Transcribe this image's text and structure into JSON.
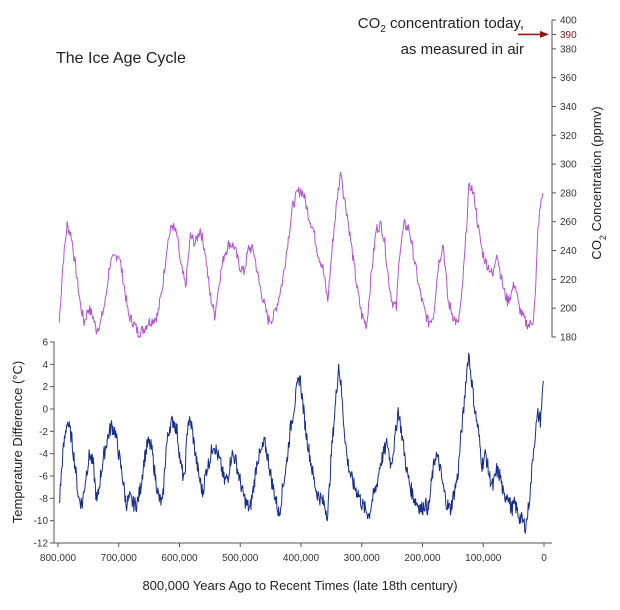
{
  "chart_data": [
    {
      "type": "line",
      "title": "The Ice Age Cycle",
      "xlabel": "800,000 Years Ago to Recent Times (late 18th century)",
      "ylabel": "CO2 Concentration (ppmv)",
      "ylabel_parts": [
        "CO",
        "2",
        " Concentration (ppmv)"
      ],
      "xlim": [
        800000,
        0
      ],
      "ylim": [
        180,
        400
      ],
      "x_ticks": [
        800000,
        700000,
        600000,
        500000,
        400000,
        300000,
        200000,
        100000,
        0
      ],
      "x_tick_labels": [
        "800,000",
        "700,000",
        "600,000",
        "500,000",
        "400,000",
        "300,000",
        "200,000",
        "100,000",
        "0"
      ],
      "y_ticks": [
        180,
        200,
        220,
        240,
        260,
        280,
        300,
        320,
        340,
        360,
        380,
        390,
        400
      ],
      "y_tick_labels": [
        "180",
        "200",
        "220",
        "240",
        "260",
        "280",
        "300",
        "320",
        "340",
        "360",
        "380",
        "390",
        "400"
      ],
      "highlight_tick": "390",
      "highlight_color": "#8b1a1a",
      "annotation": {
        "line1_parts": [
          "CO",
          "2",
          " concentration today,"
        ],
        "line2": "as measured in air",
        "value": 390,
        "arrow_color": "#8b1a1a"
      },
      "series": [
        {
          "color": "#b055d0",
          "x": [
            798000,
            792000,
            785000,
            778000,
            770000,
            763000,
            757000,
            750000,
            743000,
            737000,
            730000,
            722000,
            715000,
            707000,
            700000,
            692000,
            684000,
            676000,
            668000,
            660000,
            652000,
            644000,
            636000,
            628000,
            620000,
            612000,
            604000,
            598000,
            590000,
            582000,
            574000,
            566000,
            558000,
            550000,
            542000,
            534000,
            526000,
            518000,
            510000,
            502000,
            494000,
            486000,
            478000,
            470000,
            462000,
            454000,
            446000,
            438000,
            430000,
            422000,
            414000,
            406000,
            400000,
            395000,
            388000,
            380000,
            372000,
            364000,
            356000,
            348000,
            340000,
            334000,
            330000,
            324000,
            316000,
            308000,
            300000,
            292000,
            284000,
            276000,
            268000,
            262000,
            256000,
            250000,
            243000,
            238000,
            230000,
            222000,
            214000,
            206000,
            198000,
            190000,
            182000,
            174000,
            166000,
            158000,
            150000,
            142000,
            136000,
            130000,
            124000,
            120000,
            114000,
            108000,
            102000,
            96000,
            90000,
            84000,
            78000,
            72000,
            66000,
            60000,
            54000,
            48000,
            42000,
            36000,
            30000,
            24000,
            18000,
            14000,
            10000,
            6000,
            2000
          ],
          "values": [
            190,
            230,
            258,
            250,
            225,
            202,
            190,
            200,
            195,
            185,
            190,
            205,
            230,
            235,
            238,
            218,
            195,
            190,
            183,
            185,
            190,
            192,
            195,
            215,
            245,
            258,
            250,
            230,
            215,
            250,
            245,
            255,
            240,
            210,
            195,
            220,
            238,
            245,
            243,
            230,
            225,
            242,
            240,
            220,
            205,
            192,
            193,
            205,
            220,
            245,
            270,
            280,
            282,
            278,
            265,
            255,
            238,
            228,
            205,
            245,
            278,
            296,
            280,
            265,
            240,
            215,
            195,
            188,
            225,
            255,
            258,
            245,
            220,
            205,
            200,
            238,
            258,
            255,
            235,
            215,
            200,
            190,
            195,
            230,
            245,
            205,
            195,
            188,
            205,
            240,
            282,
            285,
            275,
            255,
            240,
            232,
            228,
            222,
            240,
            225,
            212,
            205,
            210,
            218,
            202,
            195,
            190,
            188,
            192,
            210,
            255,
            270,
            280
          ]
        }
      ]
    },
    {
      "type": "line",
      "ylabel": "Temperature Difference (°C)",
      "xlim": [
        800000,
        0
      ],
      "ylim": [
        -12,
        6
      ],
      "y_ticks": [
        6,
        4,
        2,
        0,
        -2,
        -4,
        -6,
        -8,
        -10,
        -12
      ],
      "y_tick_labels": [
        "6",
        "4",
        "2",
        "0",
        "-2",
        "-4",
        "-6",
        "-8",
        "-10",
        "-12"
      ],
      "series": [
        {
          "color": "#1a2c8c",
          "x": [
            798000,
            792000,
            785000,
            778000,
            772000,
            766000,
            760000,
            754000,
            748000,
            742000,
            736000,
            730000,
            724000,
            718000,
            712000,
            706000,
            700000,
            694000,
            688000,
            682000,
            676000,
            670000,
            664000,
            658000,
            652000,
            646000,
            640000,
            634000,
            628000,
            622000,
            616000,
            610000,
            604000,
            598000,
            592000,
            586000,
            580000,
            574000,
            568000,
            562000,
            556000,
            550000,
            544000,
            538000,
            532000,
            526000,
            520000,
            514000,
            508000,
            502000,
            496000,
            490000,
            484000,
            478000,
            472000,
            466000,
            460000,
            454000,
            448000,
            442000,
            436000,
            430000,
            424000,
            418000,
            412000,
            406000,
            402000,
            398000,
            392000,
            386000,
            380000,
            374000,
            368000,
            362000,
            356000,
            350000,
            344000,
            338000,
            334000,
            330000,
            324000,
            318000,
            312000,
            306000,
            300000,
            294000,
            288000,
            282000,
            276000,
            270000,
            264000,
            258000,
            252000,
            246000,
            240000,
            236000,
            232000,
            226000,
            220000,
            214000,
            208000,
            202000,
            196000,
            190000,
            184000,
            178000,
            172000,
            166000,
            160000,
            154000,
            148000,
            142000,
            136000,
            132000,
            128000,
            124000,
            120000,
            114000,
            108000,
            102000,
            96000,
            90000,
            84000,
            78000,
            72000,
            66000,
            60000,
            54000,
            48000,
            42000,
            36000,
            30000,
            26000,
            22000,
            18000,
            14000,
            10000,
            6000,
            3000,
            1000
          ],
          "values": [
            -8.5,
            -4,
            -1,
            -2.5,
            -5,
            -8,
            -8.5,
            -6,
            -4,
            -5,
            -8.5,
            -6,
            -4,
            -2.5,
            -1.5,
            -2,
            -4,
            -6,
            -8.5,
            -8,
            -8.5,
            -8.5,
            -7,
            -4.5,
            -3,
            -3.5,
            -6,
            -8,
            -8.5,
            -3.5,
            -1.5,
            -1,
            -2,
            -5,
            -6.5,
            -1,
            -1.5,
            -4,
            -6,
            -7.5,
            -5.5,
            -4.5,
            -3,
            -4,
            -5,
            -6.5,
            -6,
            -4,
            -4.5,
            -6,
            -7.5,
            -8.5,
            -9,
            -7,
            -4.5,
            -4,
            -3,
            -4.5,
            -6.5,
            -8,
            -9.5,
            -7,
            -5,
            -2,
            0,
            2,
            3,
            1,
            -2,
            -4,
            -6,
            -7.5,
            -8,
            -8.5,
            -9.5,
            -4,
            0,
            4,
            2,
            -1,
            -4.5,
            -6,
            -7,
            -7.5,
            -8.5,
            -9,
            -9.5,
            -8,
            -7,
            -5,
            -4,
            -3,
            -5,
            -3,
            0,
            -1.5,
            -3,
            -5.5,
            -7,
            -8,
            -8.5,
            -9,
            -8.5,
            -9,
            -6,
            -4,
            -5,
            -7,
            -8.5,
            -9,
            -7.5,
            -6,
            -2,
            0,
            3,
            5,
            3,
            0,
            -2,
            -5,
            -4,
            -6,
            -7,
            -5.5,
            -6,
            -8,
            -7.5,
            -9,
            -8.5,
            -9.5,
            -10,
            -10.5,
            -9,
            -7,
            -4,
            -2,
            -0.5,
            -1,
            1,
            2.5
          ]
        }
      ]
    }
  ]
}
